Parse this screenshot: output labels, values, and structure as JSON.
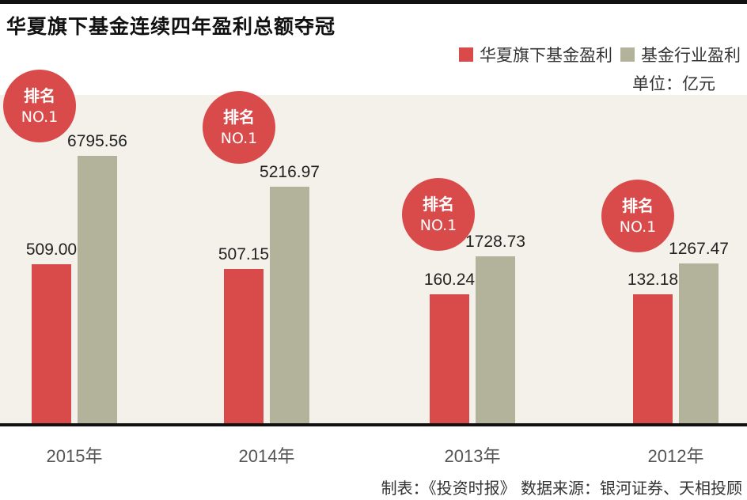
{
  "title": "华夏旗下基金连续四年盈利总额夺冠",
  "legend": {
    "series_a": "华夏旗下基金盈利",
    "series_b": "基金行业盈利"
  },
  "unit": "单位：亿元",
  "badge": {
    "line1": "排名",
    "line2": "NO.1"
  },
  "source": "制表：《投资时报》 数据来源：银河证券、天相投顾",
  "colors": {
    "series_a": "#d94a4a",
    "series_b": "#b3b39b",
    "badge": "#d94a4a",
    "axis": "#111111",
    "plot_bg": "#f3f1ea"
  },
  "chart_data": {
    "type": "bar",
    "categories": [
      "2015年",
      "2014年",
      "2013年",
      "2012年"
    ],
    "series": [
      {
        "name": "华夏旗下基金盈利",
        "values": [
          509.0,
          507.15,
          160.24,
          132.18
        ]
      },
      {
        "name": "基金行业盈利",
        "values": [
          6795.56,
          5216.97,
          1728.73,
          1267.47
        ]
      }
    ],
    "value_labels": [
      [
        "509.00",
        "507.15",
        "160.24",
        "132.18"
      ],
      [
        "6795.56",
        "5216.97",
        "1728.73",
        "1267.47"
      ]
    ],
    "annotations": [
      "排名 NO.1",
      "排名 NO.1",
      "排名 NO.1",
      "排名 NO.1"
    ],
    "xlabel": "",
    "ylabel": "",
    "legend_position": "top-right",
    "grid": false
  }
}
